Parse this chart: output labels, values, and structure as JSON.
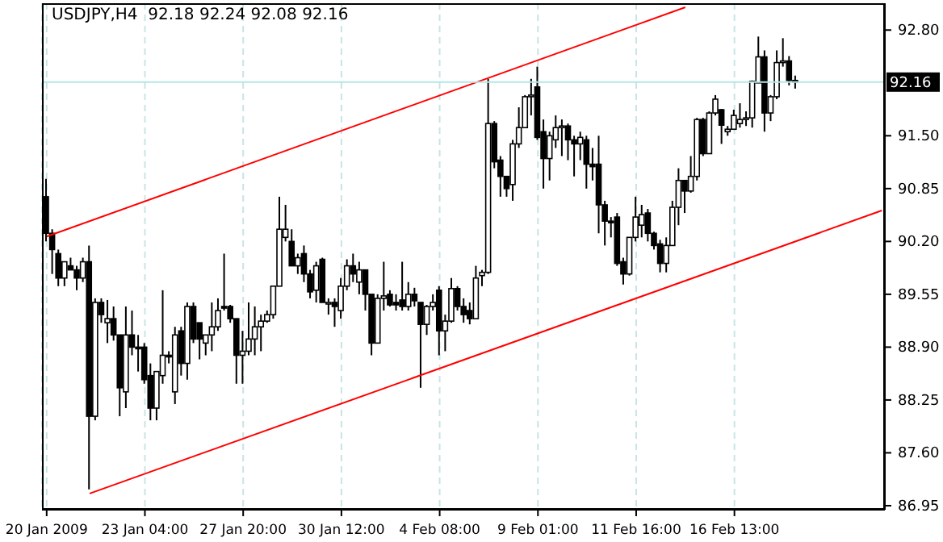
{
  "chart_data": {
    "type": "candlestick",
    "title": "USDJPY,H4  92.18 92.24 92.08 92.16",
    "categories": [
      "20 Jan 2009",
      null,
      null,
      null,
      null,
      null,
      null,
      null,
      null,
      null,
      null,
      null,
      null,
      null,
      null,
      null,
      "23 Jan 04:00",
      null,
      null,
      null,
      null,
      null,
      null,
      null,
      null,
      null,
      null,
      null,
      null,
      null,
      null,
      null,
      "27 Jan 20:00",
      null,
      null,
      null,
      null,
      null,
      null,
      null,
      null,
      null,
      null,
      null,
      null,
      null,
      null,
      null,
      "30 Jan 12:00",
      null,
      null,
      null,
      null,
      null,
      null,
      null,
      null,
      null,
      null,
      null,
      null,
      null,
      null,
      null,
      "4 Feb 08:00",
      null,
      null,
      null,
      null,
      null,
      null,
      null,
      null,
      null,
      null,
      null,
      null,
      null,
      null,
      null,
      "9 Feb 01:00",
      null,
      null,
      null,
      null,
      null,
      null,
      null,
      null,
      null,
      null,
      null,
      null,
      null,
      null,
      null,
      "11 Feb 16:00",
      null,
      null,
      null,
      null,
      null,
      null,
      null,
      null,
      null,
      null,
      null,
      null,
      null,
      null,
      null,
      "16 Feb 13:00",
      null,
      null,
      null,
      null,
      null,
      null,
      null,
      null,
      null,
      null,
      null,
      null,
      null,
      null,
      null,
      null,
      null,
      null,
      null,
      null,
      null,
      null,
      null,
      null
    ],
    "ohlc": [
      [
        90.75,
        90.97,
        90.2,
        90.3
      ],
      [
        90.3,
        90.35,
        89.8,
        90.1
      ],
      [
        90.05,
        90.1,
        89.65,
        89.75
      ],
      [
        89.75,
        89.95,
        89.65,
        89.95
      ],
      [
        89.9,
        90.0,
        89.85,
        89.85
      ],
      [
        89.85,
        89.9,
        89.6,
        89.75
      ],
      [
        89.75,
        90.0,
        89.7,
        89.95
      ],
      [
        89.95,
        90.15,
        87.15,
        88.05
      ],
      [
        88.05,
        89.5,
        88.0,
        89.45
      ],
      [
        89.45,
        89.5,
        89.2,
        89.3
      ],
      [
        89.2,
        89.48,
        88.95,
        89.25
      ],
      [
        89.25,
        89.4,
        88.98,
        89.05
      ],
      [
        89.05,
        89.05,
        88.05,
        88.4
      ],
      [
        88.35,
        89.4,
        88.15,
        89.05
      ],
      [
        89.05,
        89.35,
        88.8,
        88.9
      ],
      [
        88.9,
        89.05,
        88.6,
        88.88
      ],
      [
        88.9,
        88.95,
        88.45,
        88.5
      ],
      [
        88.55,
        88.7,
        88.0,
        88.15
      ],
      [
        88.15,
        88.6,
        88.0,
        88.6
      ],
      [
        88.55,
        89.6,
        88.45,
        88.8
      ],
      [
        88.8,
        88.85,
        88.7,
        88.78
      ],
      [
        88.35,
        89.15,
        88.2,
        89.05
      ],
      [
        89.1,
        89.15,
        88.55,
        88.7
      ],
      [
        88.7,
        89.45,
        88.5,
        89.4
      ],
      [
        89.4,
        89.45,
        88.95,
        89.0
      ],
      [
        89.2,
        89.2,
        88.75,
        89.0
      ],
      [
        88.95,
        89.05,
        88.8,
        89.05
      ],
      [
        89.05,
        89.45,
        88.85,
        89.15
      ],
      [
        89.15,
        89.5,
        89.1,
        89.35
      ],
      [
        89.4,
        90.05,
        89.35,
        89.38
      ],
      [
        89.4,
        89.42,
        89.2,
        89.25
      ],
      [
        89.25,
        89.25,
        88.45,
        88.8
      ],
      [
        88.8,
        89.1,
        88.45,
        88.85
      ],
      [
        88.85,
        89.45,
        88.8,
        89.0
      ],
      [
        89.0,
        89.4,
        88.8,
        89.15
      ],
      [
        89.15,
        89.3,
        88.85,
        89.22
      ],
      [
        89.22,
        89.35,
        89.2,
        89.3
      ],
      [
        89.3,
        89.65,
        89.25,
        89.65
      ],
      [
        89.65,
        90.75,
        89.65,
        90.35
      ],
      [
        90.25,
        90.65,
        90.2,
        90.35
      ],
      [
        90.2,
        90.35,
        89.9,
        89.9
      ],
      [
        89.9,
        90.05,
        89.8,
        90.0
      ],
      [
        90.05,
        90.15,
        89.7,
        89.8
      ],
      [
        89.8,
        89.85,
        89.5,
        89.58
      ],
      [
        89.6,
        89.95,
        89.45,
        89.9
      ],
      [
        89.98,
        90.0,
        89.45,
        89.45
      ],
      [
        89.45,
        89.5,
        89.3,
        89.45
      ],
      [
        89.45,
        89.5,
        89.15,
        89.4
      ],
      [
        89.35,
        89.75,
        89.25,
        89.65
      ],
      [
        89.65,
        89.98,
        89.6,
        89.9
      ],
      [
        89.9,
        90.05,
        89.7,
        89.8
      ],
      [
        89.7,
        89.95,
        89.55,
        89.85
      ],
      [
        89.85,
        89.85,
        89.35,
        89.55
      ],
      [
        89.55,
        89.55,
        88.8,
        88.95
      ],
      [
        88.95,
        89.55,
        88.95,
        89.5
      ],
      [
        89.5,
        89.95,
        89.35,
        89.53
      ],
      [
        89.55,
        89.6,
        89.4,
        89.42
      ],
      [
        89.45,
        89.55,
        89.35,
        89.42
      ],
      [
        89.48,
        89.95,
        89.35,
        89.4
      ],
      [
        89.4,
        89.7,
        89.35,
        89.55
      ],
      [
        89.55,
        89.63,
        89.4,
        89.47
      ],
      [
        89.45,
        89.45,
        88.4,
        89.18
      ],
      [
        89.18,
        89.42,
        89.05,
        89.4
      ],
      [
        89.4,
        89.55,
        89.35,
        89.45
      ],
      [
        89.6,
        89.65,
        88.8,
        89.1
      ],
      [
        89.1,
        89.3,
        88.85,
        89.22
      ],
      [
        89.22,
        89.75,
        89.2,
        89.62
      ],
      [
        89.62,
        89.65,
        89.35,
        89.4
      ],
      [
        89.4,
        89.5,
        89.2,
        89.3
      ],
      [
        89.35,
        89.45,
        89.18,
        89.25
      ],
      [
        89.25,
        89.9,
        89.25,
        89.75
      ],
      [
        89.78,
        89.85,
        89.65,
        89.82
      ],
      [
        89.82,
        92.2,
        89.8,
        91.65
      ],
      [
        91.65,
        91.68,
        91.1,
        91.18
      ],
      [
        91.2,
        91.25,
        90.75,
        91.0
      ],
      [
        91.0,
        91.0,
        90.75,
        90.85
      ],
      [
        90.9,
        91.45,
        90.7,
        91.4
      ],
      [
        91.4,
        91.85,
        91.35,
        91.6
      ],
      [
        91.6,
        92.0,
        91.6,
        91.98
      ],
      [
        91.98,
        92.2,
        91.75,
        92.0
      ],
      [
        92.1,
        92.35,
        91.45,
        91.48
      ],
      [
        91.55,
        91.7,
        90.85,
        91.22
      ],
      [
        91.22,
        91.55,
        90.95,
        91.5
      ],
      [
        91.45,
        91.75,
        91.35,
        91.6
      ],
      [
        91.6,
        91.7,
        91.25,
        91.62
      ],
      [
        91.62,
        91.65,
        91.2,
        91.45
      ],
      [
        91.45,
        91.5,
        91.0,
        91.4
      ],
      [
        91.4,
        91.55,
        91.2,
        91.48
      ],
      [
        91.45,
        91.5,
        90.85,
        91.15
      ],
      [
        91.15,
        91.35,
        90.95,
        91.12
      ],
      [
        91.15,
        91.5,
        90.3,
        90.65
      ],
      [
        90.65,
        90.7,
        90.15,
        90.45
      ],
      [
        90.45,
        90.5,
        90.25,
        90.43
      ],
      [
        90.5,
        90.55,
        89.9,
        89.93
      ],
      [
        89.95,
        90.0,
        89.67,
        89.8
      ],
      [
        89.8,
        90.25,
        89.78,
        90.25
      ],
      [
        90.25,
        90.75,
        90.2,
        90.5
      ],
      [
        90.4,
        90.65,
        90.25,
        90.53
      ],
      [
        90.55,
        90.6,
        90.2,
        90.3
      ],
      [
        90.3,
        90.32,
        90.1,
        90.15
      ],
      [
        90.17,
        90.22,
        89.82,
        89.93
      ],
      [
        89.93,
        90.25,
        89.82,
        90.15
      ],
      [
        90.15,
        90.7,
        90.15,
        90.62
      ],
      [
        90.62,
        91.1,
        90.4,
        90.95
      ],
      [
        90.95,
        90.95,
        90.55,
        90.82
      ],
      [
        90.82,
        91.25,
        90.8,
        91.0
      ],
      [
        91.0,
        91.72,
        90.95,
        91.7
      ],
      [
        91.7,
        91.72,
        91.25,
        91.28
      ],
      [
        91.28,
        91.8,
        91.28,
        91.78
      ],
      [
        91.78,
        92.0,
        91.75,
        91.95
      ],
      [
        91.82,
        91.83,
        91.4,
        91.63
      ],
      [
        91.55,
        91.62,
        91.5,
        91.58
      ],
      [
        91.58,
        91.82,
        91.58,
        91.75
      ],
      [
        91.65,
        91.9,
        91.6,
        91.7
      ],
      [
        91.7,
        91.8,
        91.62,
        91.72
      ],
      [
        91.72,
        92.18,
        91.6,
        92.17
      ],
      [
        92.15,
        92.72,
        92.15,
        92.47
      ],
      [
        92.47,
        92.55,
        91.55,
        91.78
      ],
      [
        91.78,
        92.0,
        91.68,
        91.98
      ],
      [
        91.98,
        92.55,
        91.95,
        92.4
      ],
      [
        92.4,
        92.7,
        92.35,
        92.42
      ],
      [
        92.42,
        92.48,
        92.12,
        92.18
      ],
      [
        92.18,
        92.24,
        92.08,
        92.16
      ],
      null,
      null,
      null,
      null,
      null,
      null,
      null,
      null,
      null,
      null,
      null,
      null,
      null,
      null
    ],
    "series": [
      {
        "type": "line",
        "color": "#ff0000",
        "values": [
          90.26,
          null,
          null,
          null,
          null,
          null,
          null,
          null,
          null,
          null,
          null,
          null,
          null,
          null,
          null,
          null,
          null,
          null,
          null,
          null,
          null,
          null,
          null,
          null,
          null,
          null,
          null,
          null,
          null,
          null,
          null,
          null,
          null,
          null,
          null,
          null,
          null,
          null,
          null,
          null,
          null,
          null,
          null,
          null,
          null,
          null,
          null,
          null,
          null,
          null,
          null,
          null,
          null,
          null,
          null,
          null,
          null,
          null,
          null,
          null,
          null,
          null,
          null,
          null,
          null,
          null,
          null,
          null,
          null,
          null,
          null,
          null,
          null,
          null,
          null,
          null,
          null,
          null,
          null,
          null,
          null,
          null,
          null,
          null,
          null,
          null,
          null,
          null,
          null,
          null,
          null,
          null,
          null,
          null,
          null,
          null,
          null,
          null,
          null,
          null,
          null,
          null,
          null,
          null,
          93.08,
          null,
          null,
          null,
          null,
          null,
          null,
          null,
          null,
          null,
          null,
          null,
          null,
          null,
          null,
          null,
          null,
          null,
          null,
          null,
          null,
          null,
          null,
          null,
          null,
          null,
          null,
          null,
          null,
          null,
          null,
          null,
          null
        ]
      },
      {
        "type": "line",
        "color": "#ff0000",
        "values": [
          null,
          null,
          null,
          null,
          null,
          null,
          null,
          87.1,
          null,
          null,
          null,
          null,
          null,
          null,
          null,
          null,
          null,
          null,
          null,
          null,
          null,
          null,
          null,
          null,
          null,
          null,
          null,
          null,
          null,
          null,
          null,
          null,
          null,
          null,
          null,
          null,
          null,
          null,
          null,
          null,
          null,
          null,
          null,
          null,
          null,
          null,
          null,
          null,
          null,
          null,
          null,
          null,
          null,
          null,
          null,
          null,
          null,
          null,
          null,
          null,
          null,
          null,
          null,
          null,
          null,
          null,
          null,
          null,
          null,
          null,
          null,
          null,
          null,
          null,
          null,
          null,
          null,
          null,
          null,
          null,
          null,
          null,
          null,
          null,
          null,
          null,
          null,
          null,
          null,
          null,
          null,
          null,
          null,
          null,
          null,
          null,
          null,
          null,
          null,
          null,
          null,
          null,
          null,
          null,
          null,
          null,
          null,
          null,
          null,
          null,
          null,
          null,
          null,
          null,
          null,
          null,
          null,
          null,
          null,
          null,
          null,
          null,
          null,
          null,
          null,
          null,
          null,
          null,
          null,
          null,
          null,
          null,
          null,
          null,
          null,
          null,
          90.58
        ]
      }
    ],
    "ylim": [
      86.9,
      93.13
    ],
    "yticks": [
      {
        "value": 92.8,
        "label": "92.80"
      },
      {
        "value": 91.5,
        "label": "91.50"
      },
      {
        "value": 90.85,
        "label": "90.85"
      },
      {
        "value": 90.2,
        "label": "90.20"
      },
      {
        "value": 89.55,
        "label": "89.55"
      },
      {
        "value": 88.9,
        "label": "88.90"
      },
      {
        "value": 88.25,
        "label": "88.25"
      },
      {
        "value": 87.6,
        "label": "87.60"
      },
      {
        "value": 86.95,
        "label": "86.95"
      }
    ],
    "ref_lines": [
      {
        "axis": "y",
        "value": 92.16,
        "label": "92.16",
        "color": "#b4e6e6"
      }
    ],
    "grid": true,
    "legend": false
  }
}
